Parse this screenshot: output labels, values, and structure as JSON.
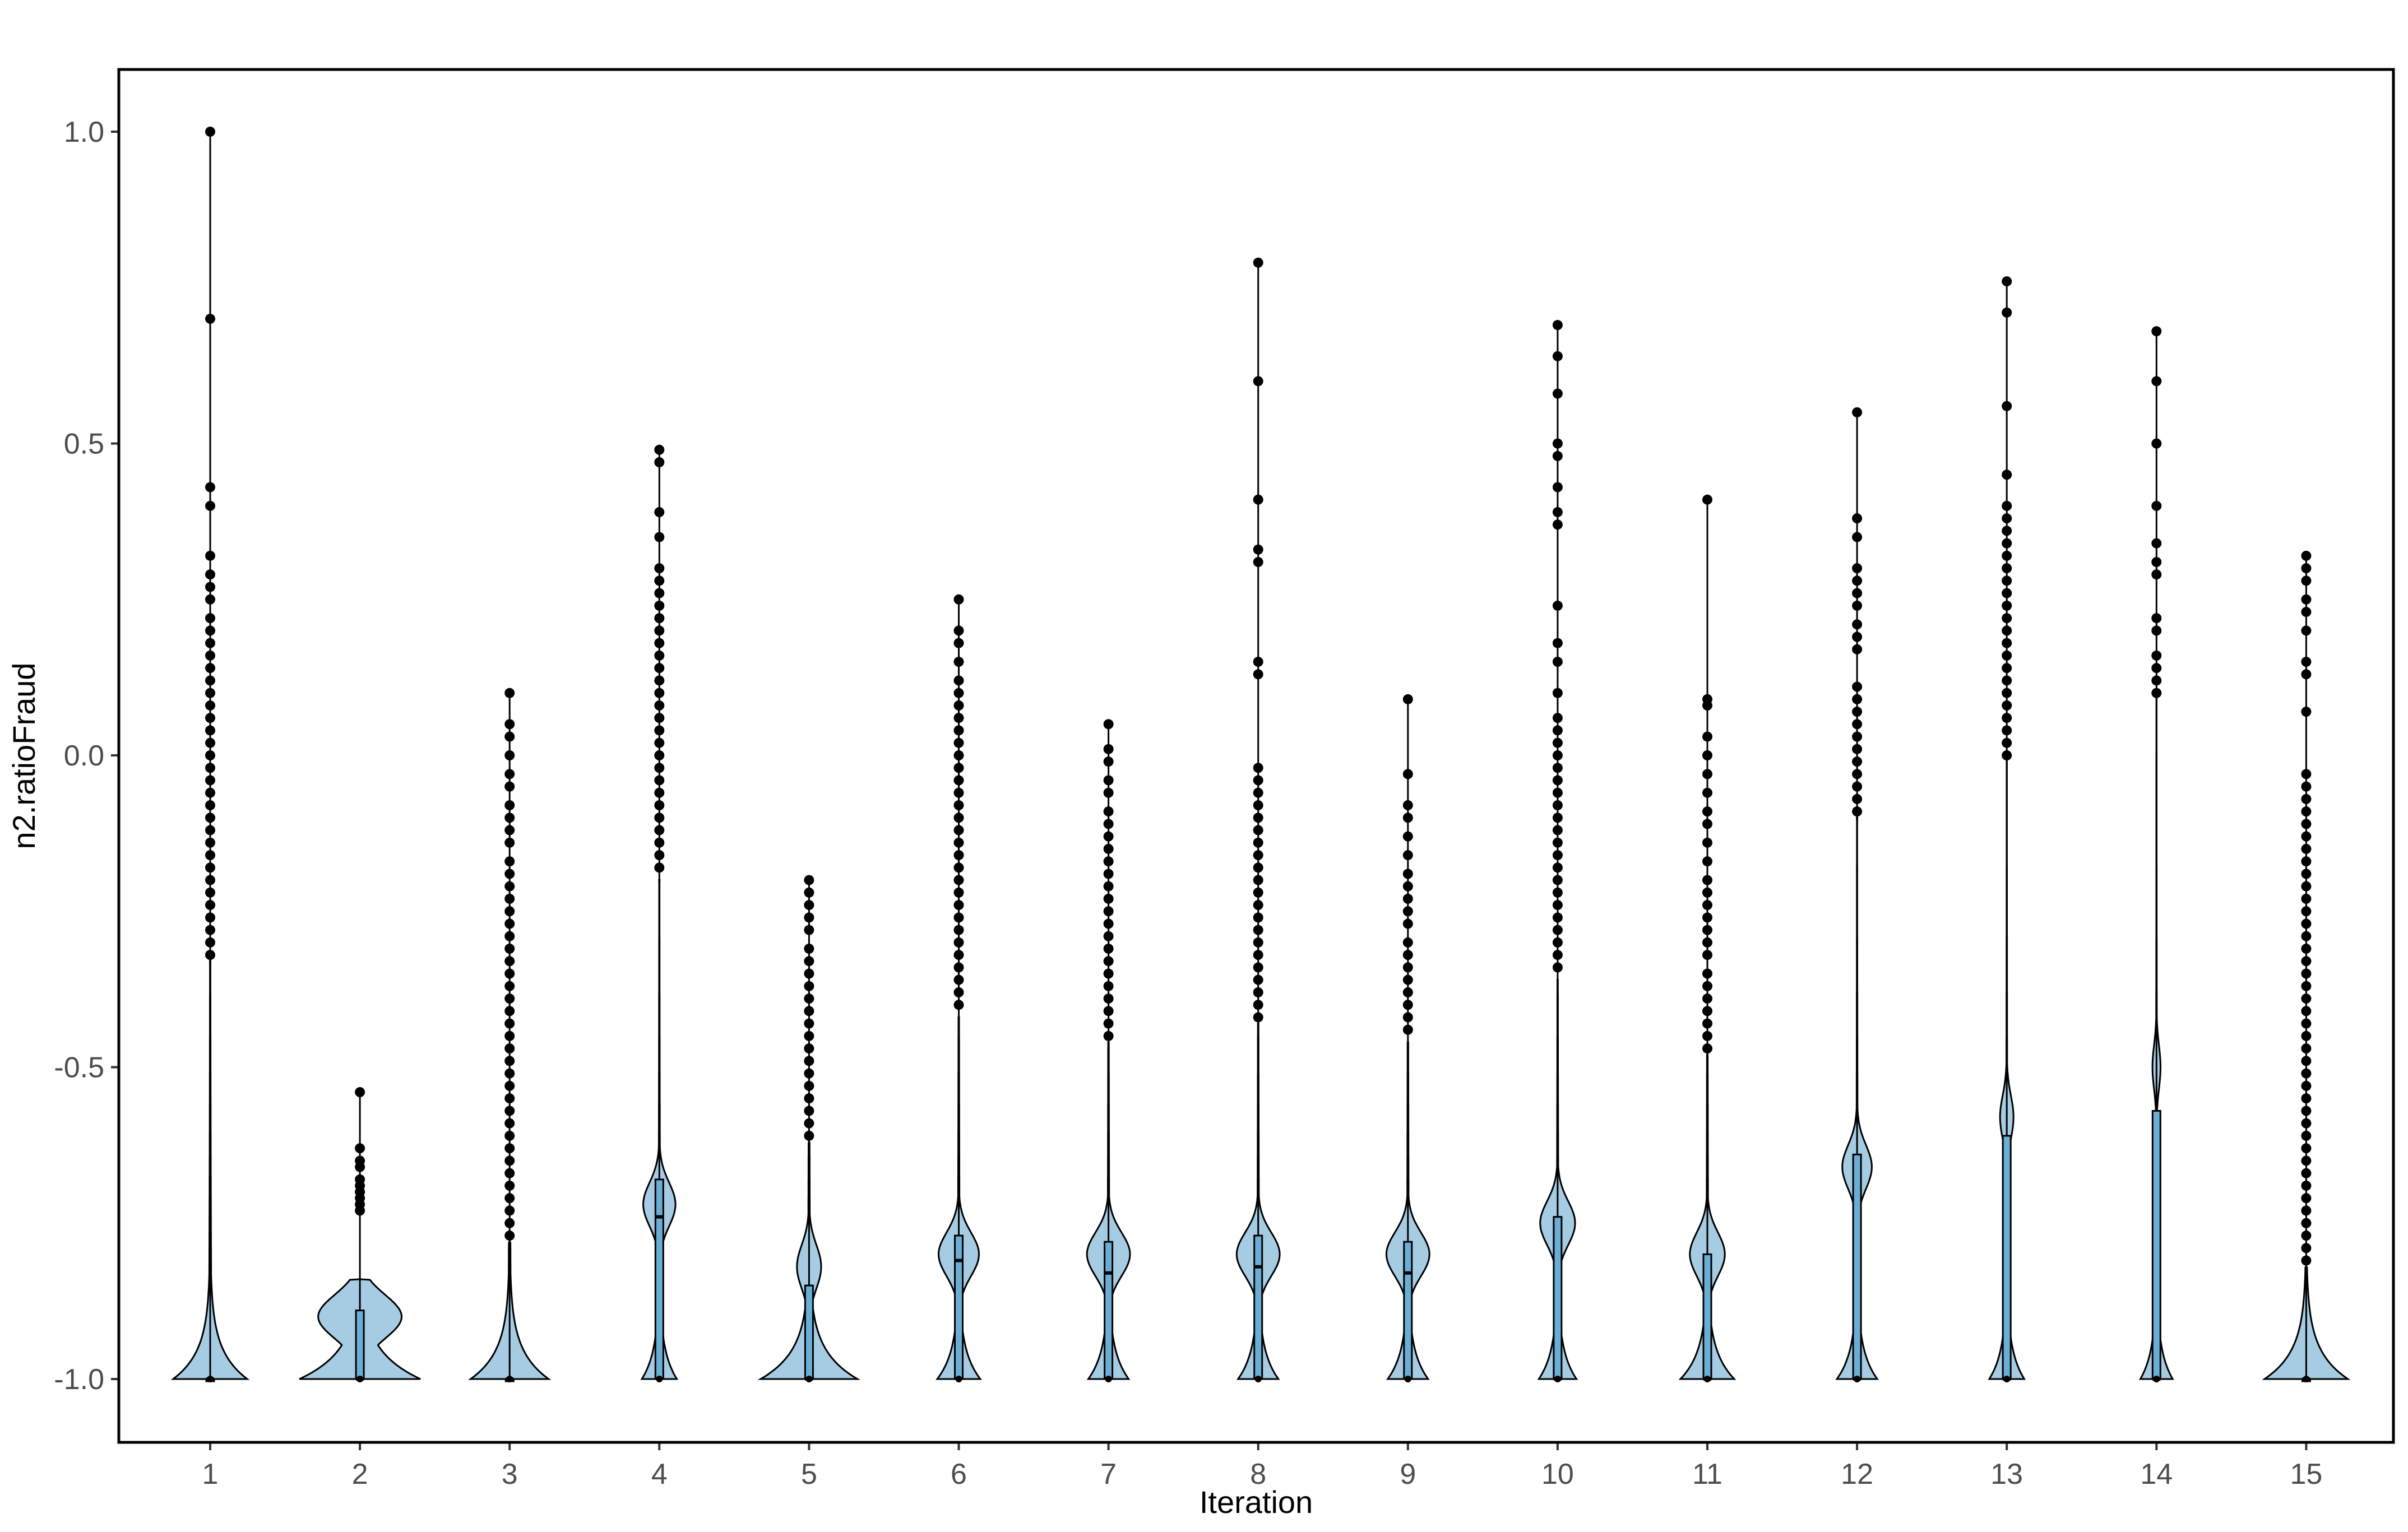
{
  "chart_data": {
    "type": "violin",
    "xlabel": "Iteration",
    "ylabel": "n2.ratioFraud",
    "ylim": [
      -1.1,
      1.1
    ],
    "y_ticks": [
      "-1.0",
      "-0.5",
      "0.0",
      "0.5",
      "1.0"
    ],
    "y_tick_values": [
      -1.0,
      -0.5,
      0.0,
      0.5,
      1.0
    ],
    "categories": [
      "1",
      "2",
      "3",
      "4",
      "5",
      "6",
      "7",
      "8",
      "9",
      "10",
      "11",
      "12",
      "13",
      "14",
      "15"
    ],
    "grid": false,
    "legend": "none",
    "colors": {
      "violin_fill": "#a6cce3",
      "box_fill": "#6aaed6",
      "outline": "#000000",
      "points": "#000000"
    },
    "series": [
      {
        "category": "1",
        "min": -1.0,
        "q1": -1.0,
        "median": -1.0,
        "q3": -1.0,
        "max": -0.33,
        "peak_width": 0.55,
        "outliers": [
          1.0,
          0.7,
          0.43,
          0.4,
          0.32,
          0.29,
          0.27,
          0.25,
          0.22,
          0.2,
          0.18,
          0.16,
          0.14,
          0.12,
          0.1,
          0.08,
          0.06,
          0.04,
          0.02,
          0.0,
          -0.02,
          -0.04,
          -0.06,
          -0.08,
          -0.1,
          -0.12,
          -0.14,
          -0.16,
          -0.18,
          -0.2,
          -0.22,
          -0.24,
          -0.26,
          -0.28,
          -0.3,
          -0.32
        ]
      },
      {
        "category": "2",
        "min": -1.0,
        "q1": -1.0,
        "median": -1.0,
        "q3": -0.89,
        "max": -0.84,
        "peak_width": 0.9,
        "sub_peak": -0.9,
        "sub_width": 0.62,
        "outliers": [
          -0.54,
          -0.63,
          -0.65,
          -0.66,
          -0.68,
          -0.69,
          -0.7,
          -0.71,
          -0.72,
          -0.73
        ]
      },
      {
        "category": "3",
        "min": -1.0,
        "q1": -1.0,
        "median": -1.0,
        "q3": -1.0,
        "max": -0.78,
        "peak_width": 0.58,
        "outliers": [
          0.1,
          0.05,
          0.03,
          0.0,
          -0.03,
          -0.05,
          -0.08,
          -0.1,
          -0.12,
          -0.14,
          -0.17,
          -0.19,
          -0.21,
          -0.23,
          -0.25,
          -0.27,
          -0.29,
          -0.31,
          -0.33,
          -0.35,
          -0.37,
          -0.39,
          -0.41,
          -0.43,
          -0.45,
          -0.47,
          -0.49,
          -0.51,
          -0.53,
          -0.55,
          -0.57,
          -0.59,
          -0.61,
          -0.63,
          -0.65,
          -0.67,
          -0.69,
          -0.71,
          -0.73,
          -0.75,
          -0.77
        ]
      },
      {
        "category": "4",
        "min": -1.0,
        "q1": -1.0,
        "median": -0.74,
        "q3": -0.68,
        "max": -0.2,
        "peak_width": 0.26,
        "sub_peak": -0.72,
        "sub_width": 0.24,
        "outliers": [
          0.49,
          0.47,
          0.39,
          0.35,
          0.3,
          0.28,
          0.26,
          0.24,
          0.22,
          0.2,
          0.18,
          0.16,
          0.14,
          0.12,
          0.1,
          0.08,
          0.06,
          0.04,
          0.02,
          0.0,
          -0.02,
          -0.04,
          -0.06,
          -0.08,
          -0.1,
          -0.12,
          -0.14,
          -0.16,
          -0.18
        ]
      },
      {
        "category": "5",
        "min": -1.0,
        "q1": -1.0,
        "median": -1.0,
        "q3": -0.85,
        "max": -0.62,
        "peak_width": 0.72,
        "sub_peak": -0.82,
        "sub_width": 0.18,
        "outliers": [
          -0.2,
          -0.22,
          -0.24,
          -0.26,
          -0.28,
          -0.31,
          -0.33,
          -0.35,
          -0.37,
          -0.39,
          -0.41,
          -0.43,
          -0.45,
          -0.47,
          -0.49,
          -0.51,
          -0.53,
          -0.55,
          -0.57,
          -0.59,
          -0.61
        ]
      },
      {
        "category": "6",
        "min": -1.0,
        "q1": -1.0,
        "median": -0.81,
        "q3": -0.77,
        "max": -0.42,
        "peak_width": 0.32,
        "sub_peak": -0.8,
        "sub_width": 0.3,
        "outliers": [
          0.25,
          0.2,
          0.18,
          0.15,
          0.12,
          0.1,
          0.08,
          0.06,
          0.04,
          0.02,
          0.0,
          -0.02,
          -0.04,
          -0.06,
          -0.08,
          -0.1,
          -0.12,
          -0.14,
          -0.16,
          -0.18,
          -0.2,
          -0.22,
          -0.24,
          -0.26,
          -0.28,
          -0.3,
          -0.32,
          -0.34,
          -0.36,
          -0.38,
          -0.4
        ]
      },
      {
        "category": "7",
        "min": -1.0,
        "q1": -1.0,
        "median": -0.83,
        "q3": -0.78,
        "max": -0.46,
        "peak_width": 0.3,
        "sub_peak": -0.8,
        "sub_width": 0.32,
        "outliers": [
          0.05,
          0.01,
          -0.01,
          -0.04,
          -0.06,
          -0.09,
          -0.11,
          -0.13,
          -0.15,
          -0.17,
          -0.19,
          -0.21,
          -0.23,
          -0.25,
          -0.27,
          -0.29,
          -0.31,
          -0.33,
          -0.35,
          -0.37,
          -0.39,
          -0.41,
          -0.43,
          -0.45
        ]
      },
      {
        "category": "8",
        "min": -1.0,
        "q1": -1.0,
        "median": -0.82,
        "q3": -0.77,
        "max": -0.43,
        "peak_width": 0.3,
        "sub_peak": -0.8,
        "sub_width": 0.32,
        "outliers": [
          0.79,
          0.6,
          0.41,
          0.33,
          0.31,
          0.15,
          0.13,
          -0.02,
          -0.04,
          -0.06,
          -0.08,
          -0.1,
          -0.12,
          -0.14,
          -0.16,
          -0.18,
          -0.2,
          -0.22,
          -0.24,
          -0.26,
          -0.28,
          -0.3,
          -0.32,
          -0.34,
          -0.36,
          -0.38,
          -0.4,
          -0.42
        ]
      },
      {
        "category": "9",
        "min": -1.0,
        "q1": -1.0,
        "median": -0.83,
        "q3": -0.78,
        "max": -0.46,
        "peak_width": 0.3,
        "sub_peak": -0.8,
        "sub_width": 0.32,
        "outliers": [
          0.09,
          -0.03,
          -0.08,
          -0.1,
          -0.13,
          -0.16,
          -0.19,
          -0.21,
          -0.23,
          -0.25,
          -0.27,
          -0.3,
          -0.32,
          -0.34,
          -0.36,
          -0.38,
          -0.4,
          -0.42,
          -0.44
        ]
      },
      {
        "category": "10",
        "min": -1.0,
        "q1": -1.0,
        "median": -1.0,
        "q3": -0.74,
        "max": -0.36,
        "peak_width": 0.28,
        "sub_peak": -0.75,
        "sub_width": 0.26,
        "outliers": [
          0.69,
          0.64,
          0.58,
          0.5,
          0.48,
          0.43,
          0.39,
          0.37,
          0.24,
          0.18,
          0.15,
          0.1,
          0.06,
          0.04,
          0.02,
          0.0,
          -0.02,
          -0.04,
          -0.06,
          -0.08,
          -0.1,
          -0.12,
          -0.14,
          -0.16,
          -0.18,
          -0.2,
          -0.22,
          -0.24,
          -0.26,
          -0.28,
          -0.3,
          -0.32,
          -0.34
        ]
      },
      {
        "category": "11",
        "min": -1.0,
        "q1": -1.0,
        "median": -1.0,
        "q3": -0.8,
        "max": -0.48,
        "peak_width": 0.4,
        "sub_peak": -0.8,
        "sub_width": 0.26,
        "outliers": [
          0.41,
          0.09,
          0.08,
          0.03,
          0.0,
          -0.03,
          -0.06,
          -0.09,
          -0.11,
          -0.14,
          -0.17,
          -0.2,
          -0.22,
          -0.24,
          -0.26,
          -0.28,
          -0.3,
          -0.32,
          -0.35,
          -0.37,
          -0.39,
          -0.41,
          -0.43,
          -0.45,
          -0.47
        ]
      },
      {
        "category": "12",
        "min": -1.0,
        "q1": -1.0,
        "median": -1.0,
        "q3": -0.64,
        "max": -0.1,
        "peak_width": 0.3,
        "sub_peak": -0.66,
        "sub_width": 0.22,
        "outliers": [
          0.55,
          0.38,
          0.35,
          0.3,
          0.28,
          0.26,
          0.24,
          0.21,
          0.19,
          0.17,
          0.11,
          0.09,
          0.07,
          0.05,
          0.03,
          0.01,
          -0.01,
          -0.03,
          -0.05,
          -0.07,
          -0.09
        ]
      },
      {
        "category": "13",
        "min": -1.0,
        "q1": -1.0,
        "median": -1.0,
        "q3": -0.61,
        "max": 0.0,
        "peak_width": 0.26,
        "sub_peak": -0.58,
        "sub_width": 0.1,
        "outliers": [
          0.76,
          0.71,
          0.56,
          0.45,
          0.4,
          0.38,
          0.36,
          0.34,
          0.32,
          0.3,
          0.28,
          0.26,
          0.24,
          0.22,
          0.2,
          0.18,
          0.16,
          0.14,
          0.12,
          0.1,
          0.08,
          0.06,
          0.04,
          0.02,
          0.0
        ]
      },
      {
        "category": "14",
        "min": -1.0,
        "q1": -1.0,
        "median": -1.0,
        "q3": -0.57,
        "max": 0.1,
        "peak_width": 0.24,
        "sub_peak": -0.5,
        "sub_width": 0.06,
        "outliers": [
          0.68,
          0.6,
          0.5,
          0.4,
          0.34,
          0.31,
          0.29,
          0.22,
          0.2,
          0.16,
          0.14,
          0.12,
          0.1
        ]
      },
      {
        "category": "15",
        "min": -1.0,
        "q1": -1.0,
        "median": -1.0,
        "q3": -1.0,
        "max": -0.82,
        "peak_width": 0.62,
        "outliers": [
          0.32,
          0.3,
          0.28,
          0.25,
          0.23,
          0.2,
          0.15,
          0.13,
          0.07,
          -0.03,
          -0.05,
          -0.07,
          -0.09,
          -0.11,
          -0.13,
          -0.15,
          -0.17,
          -0.19,
          -0.21,
          -0.23,
          -0.25,
          -0.27,
          -0.29,
          -0.31,
          -0.33,
          -0.35,
          -0.37,
          -0.39,
          -0.41,
          -0.43,
          -0.45,
          -0.47,
          -0.49,
          -0.51,
          -0.53,
          -0.55,
          -0.57,
          -0.59,
          -0.61,
          -0.63,
          -0.65,
          -0.67,
          -0.69,
          -0.71,
          -0.73,
          -0.75,
          -0.77,
          -0.79,
          -0.81
        ]
      }
    ]
  }
}
